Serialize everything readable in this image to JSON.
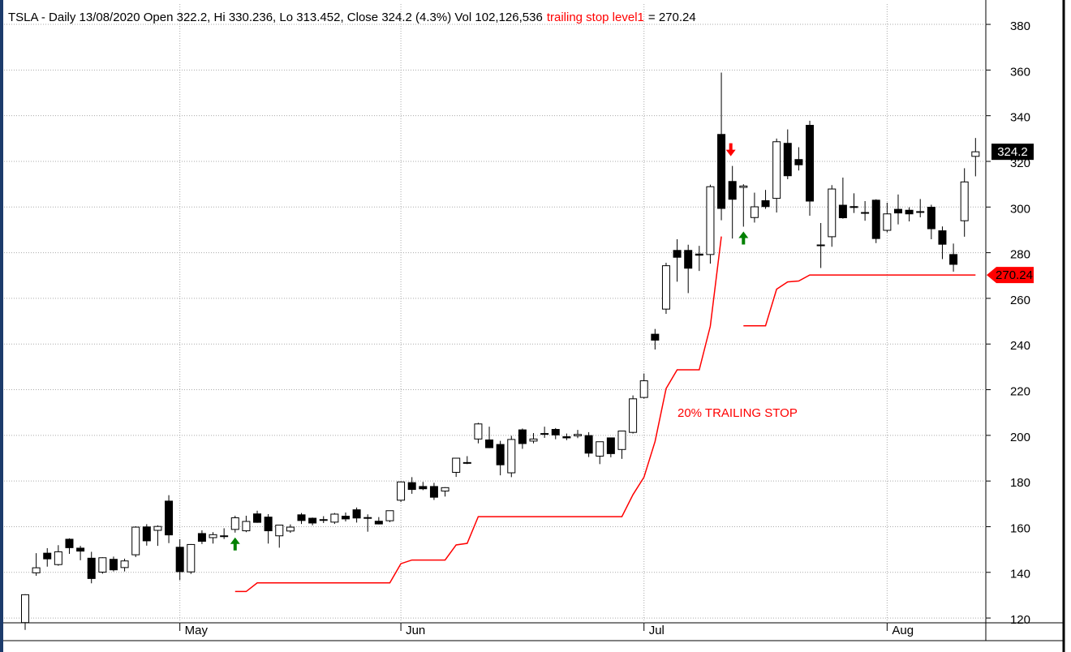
{
  "chart_data": {
    "type": "candlestick",
    "title": "TSLA - Daily 13/08/2020 Open 322.2, Hi 330.236, Lo 313.452, Close 324.2 (4.3%) Vol 102,126,536",
    "stop_value_text": "= 270.24",
    "annotation": "20% TRAILING STOP",
    "categories": [
      null,
      null,
      null,
      null,
      null,
      null,
      null,
      null,
      null,
      null,
      null,
      null,
      null,
      null,
      "May",
      null,
      null,
      null,
      null,
      null,
      null,
      null,
      null,
      null,
      null,
      null,
      null,
      null,
      null,
      null,
      null,
      null,
      null,
      null,
      "Jun",
      null,
      null,
      null,
      null,
      null,
      null,
      null,
      null,
      null,
      null,
      null,
      null,
      null,
      null,
      null,
      null,
      null,
      null,
      null,
      null,
      null,
      "Jul",
      null,
      null,
      null,
      null,
      null,
      null,
      null,
      null,
      null,
      null,
      null,
      null,
      null,
      null,
      null,
      null,
      null,
      null,
      null,
      null,
      null,
      "Aug",
      null,
      null,
      null,
      null,
      null,
      null,
      null,
      null
    ],
    "open": [
      118,
      139.8,
      148.4,
      143.4,
      154.5,
      150.6,
      146.2,
      140.1,
      145.7,
      142.1,
      147.7,
      159.9,
      158.4,
      171.2,
      151,
      140.2,
      157,
      155.2,
      155.9,
      158.8,
      158.2,
      165.6,
      164.2,
      156,
      158.1,
      165.2,
      163.7,
      163.1,
      162,
      164.6,
      167.4,
      164,
      162.4,
      162.6,
      171.6,
      179.3,
      177.6,
      177.6,
      175.6,
      183.8,
      188,
      198.4,
      198,
      196,
      183.6,
      202.4,
      197.5,
      200.6,
      202.6,
      199.4,
      199.8,
      199.9,
      190.9,
      198.9,
      193.8,
      201.3,
      216.6,
      244.3,
      255.3,
      281,
      281,
      279.4,
      279.2,
      331.8,
      311.2,
      308.6,
      295.4,
      302.8,
      303.8,
      327.9,
      320.8,
      335.8,
      283.2,
      287,
      300.8,
      300.2,
      297.6,
      303,
      289.8,
      299,
      298.6,
      298,
      299.9,
      289.6,
      279.2,
      294,
      322.2
    ],
    "high": [
      130.4,
      148.4,
      150.6,
      151.9,
      154.9,
      151.6,
      149,
      146.6,
      146.9,
      146,
      160.2,
      161.1,
      160.6,
      173.8,
      154.5,
      152.4,
      158.4,
      157.6,
      159.3,
      164.8,
      164.8,
      167,
      165.5,
      160.7,
      161,
      166,
      164,
      164.6,
      166,
      166.2,
      168.4,
      165.4,
      164.2,
      167,
      179.8,
      181.7,
      179.6,
      179.2,
      177.3,
      190,
      190.9,
      205.5,
      203.8,
      197.6,
      199.8,
      203,
      201,
      203.8,
      203.2,
      200.8,
      202.4,
      201.4,
      197.2,
      199,
      202,
      217.5,
      227.1,
      246.6,
      275.6,
      285.9,
      283.5,
      283,
      309.8,
      358.9,
      318,
      310,
      306.3,
      307.5,
      330,
      334,
      326.2,
      337.8,
      293,
      309.6,
      312.9,
      306,
      302.6,
      303.4,
      301.9,
      305.5,
      299.9,
      303.5,
      301,
      291.5,
      284,
      317,
      330.236
    ],
    "low": [
      114.8,
      138.5,
      142.5,
      142.9,
      148.1,
      145.3,
      135.2,
      139.4,
      140.4,
      140.4,
      146.7,
      151.7,
      151.6,
      152.8,
      136.6,
      139.3,
      152.4,
      152.6,
      154.6,
      157.4,
      157.6,
      161.7,
      152.6,
      150.8,
      157.3,
      161.2,
      160.6,
      161.6,
      161.2,
      162.3,
      161.8,
      157.8,
      161,
      162,
      170.8,
      174.4,
      176,
      171.7,
      173.2,
      181.8,
      187.4,
      196.5,
      194.4,
      182.5,
      181.7,
      194.1,
      196.5,
      198.9,
      198.3,
      197.9,
      198.8,
      190.5,
      187.4,
      190.4,
      189.7,
      200.8,
      216.1,
      237.6,
      253.2,
      267.3,
      262.3,
      272,
      275.2,
      294.2,
      286.2,
      291.4,
      293.2,
      299.2,
      297.6,
      312.2,
      316,
      296.2,
      273.3,
      282.6,
      294.9,
      297.4,
      294,
      284.2,
      288.9,
      292.4,
      293.7,
      295.5,
      285.9,
      277.2,
      271.7,
      287,
      313.452
    ],
    "close": [
      130.2,
      142,
      145.9,
      149,
      150.8,
      149.3,
      137.3,
      146.4,
      141.1,
      145,
      159.8,
      153.8,
      160.1,
      156.4,
      140.3,
      152.2,
      153.6,
      156.5,
      156,
      163.9,
      162.3,
      161.9,
      158.2,
      160.7,
      159.8,
      162.7,
      161.6,
      163.1,
      165.5,
      163.4,
      163.8,
      164,
      161.2,
      167,
      179.6,
      176.3,
      176.6,
      172.9,
      177.1,
      190,
      188.1,
      205,
      194.6,
      187.1,
      198.2,
      196.4,
      198.4,
      200.8,
      200.2,
      198.9,
      200.4,
      192.2,
      197.2,
      192,
      201.9,
      216,
      223.9,
      241.7,
      274.3,
      278,
      273.2,
      278.9,
      308.9,
      299.4,
      303.4,
      309.2,
      300.1,
      300.2,
      328.6,
      313.7,
      318.5,
      302.6,
      283.4,
      307.9,
      295.3,
      299.8,
      297.5,
      286.2,
      297,
      297.4,
      297,
      297.9,
      290.5,
      283.7,
      274.9,
      311,
      324.2
    ],
    "stop": {
      "name": "trailing stop level1",
      "color": "#ff0000",
      "values": [
        null,
        null,
        null,
        null,
        null,
        null,
        null,
        null,
        null,
        null,
        null,
        null,
        null,
        null,
        null,
        null,
        null,
        null,
        null,
        131.6,
        131.6,
        135.4,
        135.4,
        135.4,
        135.4,
        135.4,
        135.4,
        135.4,
        135.4,
        135.4,
        135.4,
        135.4,
        135.4,
        135.4,
        143.8,
        145.4,
        145.4,
        145.4,
        145.4,
        152,
        152.7,
        164.4,
        164.4,
        164.4,
        164.4,
        164.4,
        164.4,
        164.4,
        164.4,
        164.4,
        164.4,
        164.4,
        164.4,
        164.4,
        164.4,
        174,
        181.7,
        197.3,
        220.5,
        228.7,
        228.7,
        228.7,
        247.8,
        287.1,
        null,
        248,
        248,
        248,
        264,
        267.2,
        267.6,
        270.24,
        270.24,
        270.24,
        270.24,
        270.24,
        270.24,
        270.24,
        270.24,
        270.24,
        270.24,
        270.24,
        270.24,
        270.24,
        270.24,
        270.24,
        270.24
      ]
    },
    "buy_signals": [
      19,
      65
    ],
    "sell_signals": [
      64
    ],
    "up_color": "#ffffff",
    "down_color": "#000000",
    "buy_color": "#008000",
    "sell_color": "#ff0000",
    "ylim": [
      117.9,
      388.9
    ],
    "yticks": [
      120,
      140,
      160,
      180,
      200,
      220,
      240,
      260,
      280,
      300,
      320,
      340,
      360,
      380
    ],
    "grid": true
  }
}
